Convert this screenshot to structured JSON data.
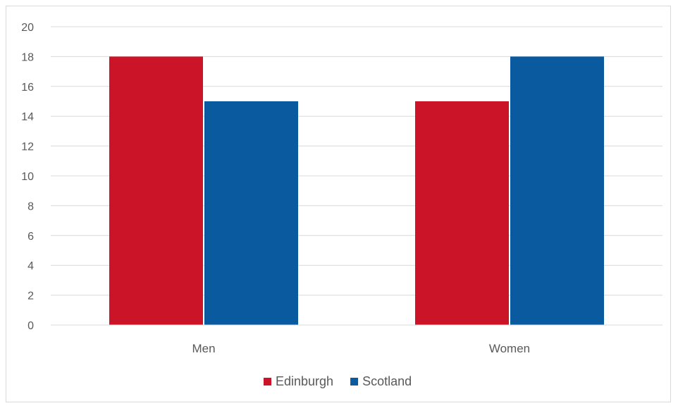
{
  "chart_data": {
    "type": "bar",
    "title": "",
    "xlabel": "",
    "ylabel": "",
    "categories": [
      "Men",
      "Women"
    ],
    "series": [
      {
        "name": "Edinburgh",
        "values": [
          18,
          15
        ],
        "color": "#cc1428"
      },
      {
        "name": "Scotland",
        "values": [
          15,
          18
        ],
        "color": "#0a5aa0"
      }
    ],
    "ylim": [
      0,
      20
    ],
    "yticks": [
      0,
      2,
      4,
      6,
      8,
      10,
      12,
      14,
      16,
      18,
      20
    ],
    "grid": true,
    "gridline_color": "#d9d9d9",
    "legend_position": "bottom"
  }
}
